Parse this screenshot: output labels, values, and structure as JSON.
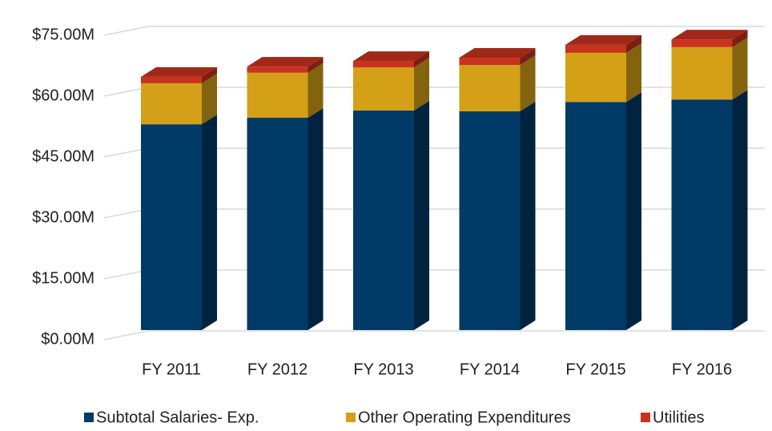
{
  "chart_data": {
    "type": "bar3d_stacked",
    "categories": [
      "FY 2011",
      "FY 2012",
      "FY 2013",
      "FY 2014",
      "FY 2015",
      "FY 2016"
    ],
    "series": [
      {
        "name": "Subtotal Salaries- Exp.",
        "color": "#003a66",
        "values": [
          50.7,
          52.3,
          54.1,
          53.9,
          56.2,
          56.8
        ]
      },
      {
        "name": "Other Operating Expenditures",
        "color": "#d4a017",
        "values": [
          10.1,
          11.1,
          10.6,
          11.4,
          12.1,
          12.9
        ]
      },
      {
        "name": "Utilities",
        "color": "#c8321e",
        "values": [
          1.6,
          1.5,
          1.6,
          1.8,
          2.0,
          1.9
        ]
      }
    ],
    "ylim": [
      0,
      75
    ],
    "yticks": [
      {
        "value": 0,
        "label": "$0.00M"
      },
      {
        "value": 15,
        "label": "$15.00M"
      },
      {
        "value": 30,
        "label": "$30.00M"
      },
      {
        "value": 45,
        "label": "$45.00M"
      },
      {
        "value": 60,
        "label": "$60.00M"
      },
      {
        "value": 75,
        "label": "$75.00M"
      }
    ],
    "grid": true,
    "legend": "bottom"
  }
}
